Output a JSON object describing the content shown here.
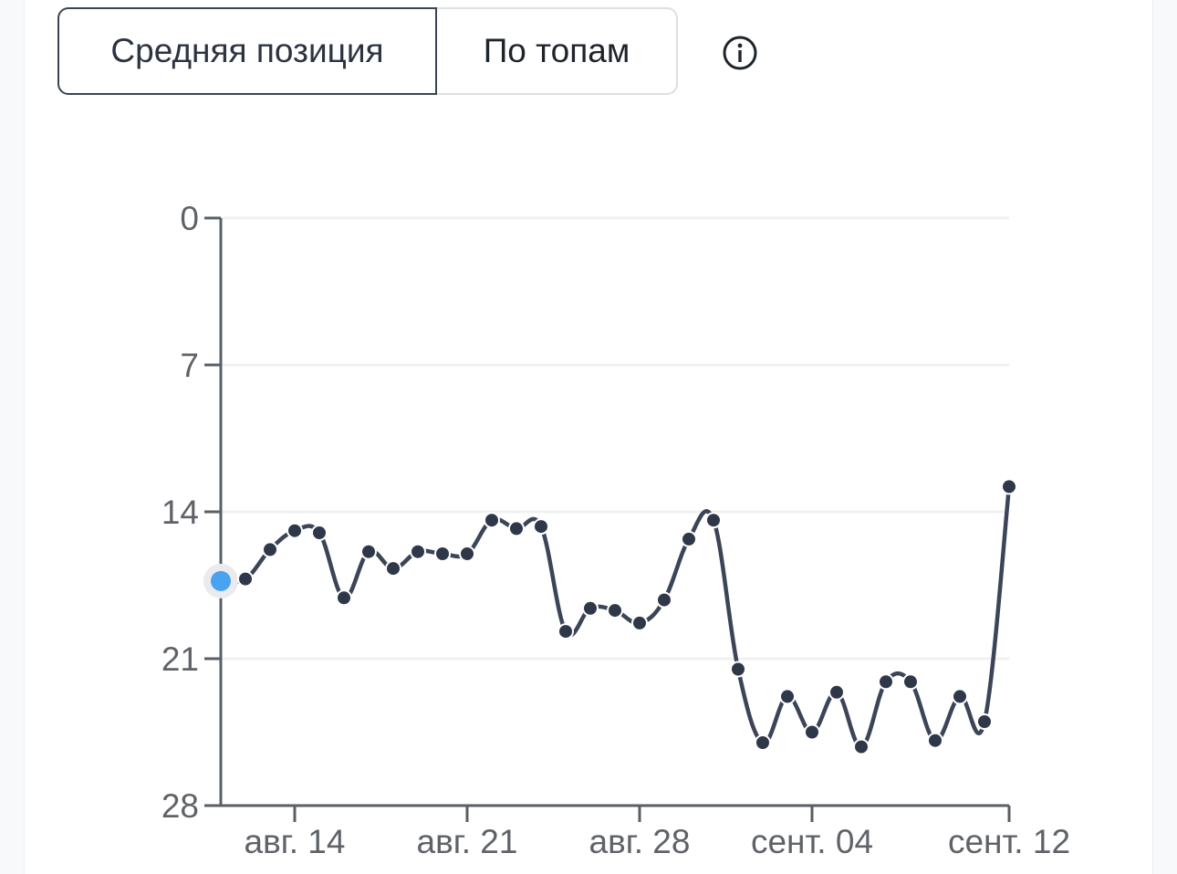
{
  "toggle": {
    "active_label": "Средняя позиция",
    "inactive_label": "По топам",
    "info_icon": "info-circle-icon"
  },
  "colors": {
    "line": "#3b4557",
    "point": "#2f3848",
    "highlight": "#4aa3ee",
    "axis": "#595f66",
    "grid": "#f0f1f3"
  },
  "chart_data": {
    "type": "line",
    "title": "",
    "xlabel": "",
    "ylabel": "",
    "y_inverted": true,
    "ylim": [
      0,
      28
    ],
    "y_ticks": [
      "0",
      "7",
      "14",
      "21",
      "28"
    ],
    "x_ticks": [
      {
        "label": "авг. 14",
        "x": "2023-08-14"
      },
      {
        "label": "авг. 21",
        "x": "2023-08-21"
      },
      {
        "label": "авг. 28",
        "x": "2023-08-28"
      },
      {
        "label": "сент. 04",
        "x": "2023-09-04"
      },
      {
        "label": "сент. 12",
        "x": "2023-09-12"
      }
    ],
    "grid": true,
    "legend": "none",
    "series": [
      {
        "x": [
          "2023-08-11",
          "2023-08-12",
          "2023-08-13",
          "2023-08-14",
          "2023-08-15",
          "2023-08-16",
          "2023-08-17",
          "2023-08-18",
          "2023-08-19",
          "2023-08-20",
          "2023-08-21",
          "2023-08-22",
          "2023-08-23",
          "2023-08-24",
          "2023-08-25",
          "2023-08-26",
          "2023-08-27",
          "2023-08-28",
          "2023-08-29",
          "2023-08-30",
          "2023-08-31",
          "2023-09-01",
          "2023-09-02",
          "2023-09-03",
          "2023-09-04",
          "2023-09-05",
          "2023-09-06",
          "2023-09-07",
          "2023-09-08",
          "2023-09-09",
          "2023-09-10",
          "2023-09-11",
          "2023-09-12"
        ],
        "values": [
          17.3,
          17.2,
          15.8,
          14.9,
          15.0,
          18.1,
          15.9,
          16.7,
          15.9,
          16.0,
          16.0,
          14.4,
          14.8,
          14.7,
          19.7,
          18.6,
          18.7,
          19.3,
          18.2,
          15.3,
          14.4,
          21.5,
          25.0,
          22.8,
          24.5,
          22.6,
          25.2,
          22.1,
          22.1,
          24.9,
          22.8,
          24.0,
          12.8
        ],
        "highlight_index": 0
      }
    ]
  }
}
